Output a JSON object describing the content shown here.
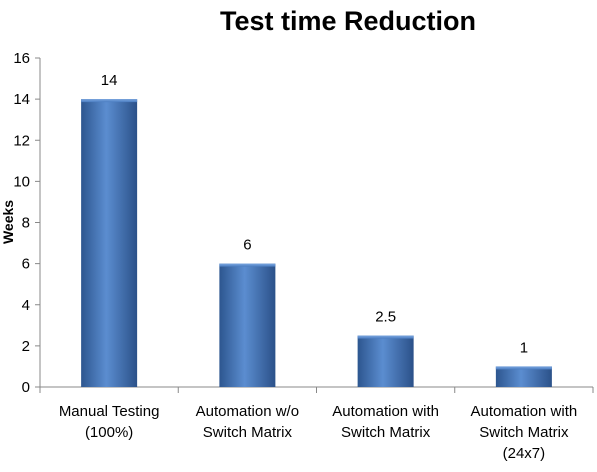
{
  "chart_data": {
    "type": "bar",
    "title": "Test time Reduction",
    "xlabel": "",
    "ylabel": "Weeks",
    "ylim": [
      0,
      16
    ],
    "yticks": [
      0,
      2,
      4,
      6,
      8,
      10,
      12,
      14,
      16
    ],
    "categories": [
      [
        "Manual Testing",
        "(100%)"
      ],
      [
        "Automation w/o",
        "Switch Matrix"
      ],
      [
        "Automation with",
        "Switch Matrix"
      ],
      [
        "Automation with",
        "Switch Matrix",
        "(24x7)"
      ]
    ],
    "values": [
      14,
      6,
      2.5,
      1
    ],
    "data_labels": [
      "14",
      "6",
      "2.5",
      "1"
    ],
    "bar_color": "#4a7cc0",
    "grid": false,
    "legend": "none"
  }
}
